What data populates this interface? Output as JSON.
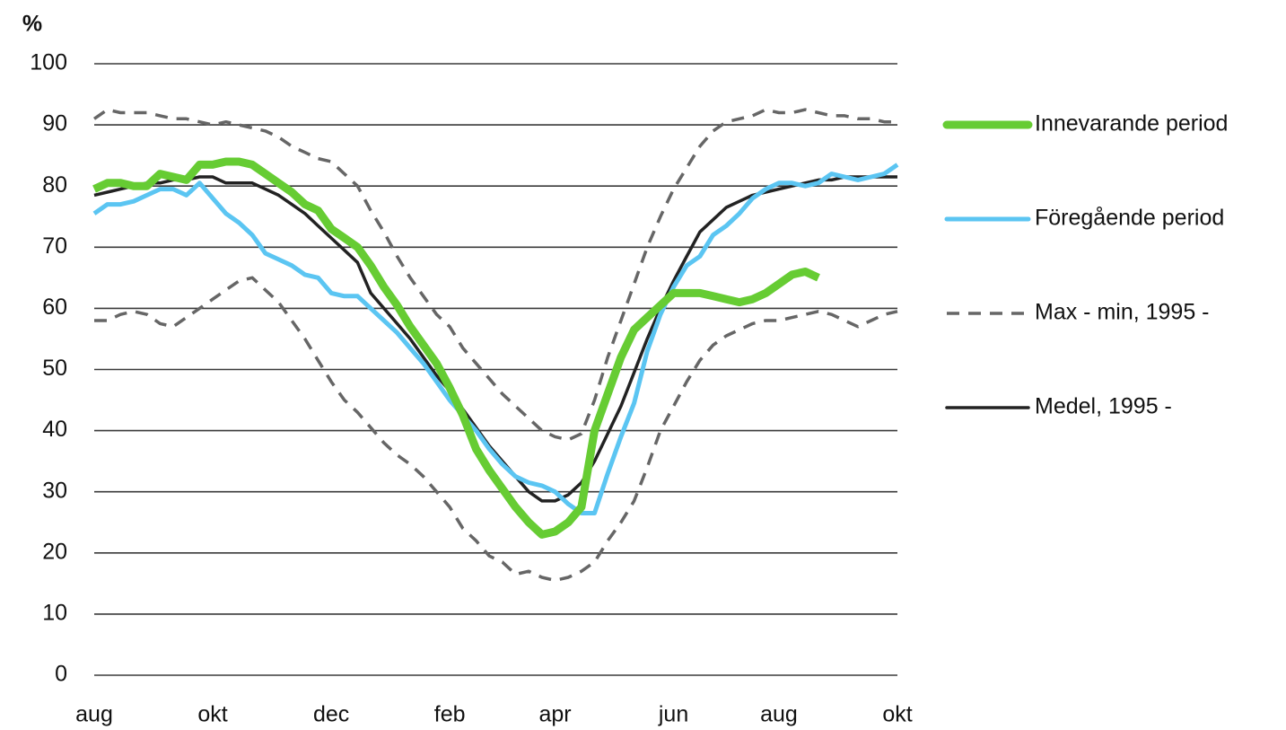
{
  "chart_data": {
    "type": "line",
    "y_label": "%",
    "categories": [
      "aug",
      null,
      null,
      null,
      null,
      null,
      null,
      null,
      null,
      "okt",
      null,
      null,
      null,
      null,
      null,
      null,
      null,
      null,
      "dec",
      null,
      null,
      null,
      null,
      null,
      null,
      null,
      null,
      "feb",
      null,
      null,
      null,
      null,
      null,
      null,
      null,
      "apr",
      null,
      null,
      null,
      null,
      null,
      null,
      null,
      null,
      "jun",
      null,
      null,
      null,
      null,
      null,
      null,
      null,
      "aug",
      null,
      null,
      null,
      null,
      null,
      null,
      null,
      null,
      "okt"
    ],
    "ylim": [
      0,
      100
    ],
    "yticks": [
      0,
      10,
      20,
      30,
      40,
      50,
      60,
      70,
      80,
      90,
      100
    ],
    "grid": true,
    "series": [
      {
        "name": "Innevarande period",
        "color": "#66cc33",
        "width": 9,
        "dashed": false,
        "values": [
          79.5,
          80.5,
          80.5,
          80,
          80,
          82,
          81.5,
          81,
          83.5,
          83.5,
          84,
          84,
          83.5,
          82,
          80.5,
          79,
          77,
          76,
          73,
          71.5,
          70,
          67,
          63.5,
          60.5,
          57,
          54,
          51,
          47,
          42.5,
          37,
          33.5,
          30.5,
          27.5,
          25,
          23,
          23.5,
          25,
          27.5,
          40,
          46,
          52,
          56.5,
          58.5,
          60.5,
          62.5,
          62.5,
          62.5,
          62,
          61.5,
          61,
          61.5,
          62.5,
          64,
          65.5,
          66,
          65,
          null,
          null,
          null,
          null,
          null,
          null
        ]
      },
      {
        "name": "Föregående period",
        "color": "#5bc5f2",
        "width": 5,
        "dashed": false,
        "values": [
          75.5,
          77,
          77,
          77.5,
          78.5,
          79.5,
          79.5,
          78.5,
          80.5,
          78,
          75.5,
          74,
          72,
          69,
          68,
          67,
          65.5,
          65,
          62.5,
          62,
          62,
          60,
          58,
          56,
          53.5,
          51,
          48,
          45,
          42.5,
          40,
          37,
          34.5,
          32.5,
          31.5,
          31,
          30,
          28,
          26.5,
          26.5,
          33,
          39,
          44.5,
          53,
          59,
          63.5,
          67,
          68.5,
          72,
          73.5,
          75.5,
          78,
          79.5,
          80.5,
          80.5,
          80,
          80.5,
          82,
          81.5,
          81,
          81.5,
          82,
          83.5
        ]
      },
      {
        "name": "Max - min, 1995 -",
        "color": "#666666",
        "width": 3.5,
        "dashed": true,
        "values": [
          91,
          92.5,
          92,
          92,
          92,
          91.5,
          91,
          91,
          90.5,
          90,
          90.5,
          90,
          89.5,
          89,
          88,
          86.5,
          85.5,
          84.5,
          84,
          82,
          80,
          76,
          72.5,
          68.5,
          65,
          62,
          59,
          57,
          53.5,
          51,
          48.5,
          46,
          44,
          42,
          40,
          39,
          38.5,
          39.5,
          45,
          52,
          58,
          64,
          70,
          75,
          79.5,
          83,
          86.5,
          89,
          90.5,
          91,
          91.5,
          92.5,
          92,
          92,
          92.5,
          92,
          91.5,
          91.5,
          91,
          91,
          90.5,
          90.5
        ]
      },
      {
        "color": "#666666",
        "width": 3.5,
        "dashed": true,
        "values": [
          58,
          58,
          59,
          59.5,
          59,
          57.5,
          57,
          58.5,
          60,
          61.5,
          63,
          64.5,
          65,
          63,
          61,
          58,
          55,
          51.5,
          48,
          45,
          43,
          40.5,
          38,
          36,
          34.5,
          32.5,
          30,
          27.5,
          24,
          22,
          19.5,
          18.5,
          16.5,
          17,
          16,
          15.5,
          16,
          17,
          18.5,
          22,
          25,
          28.5,
          34,
          40,
          44,
          48,
          51.5,
          54,
          55.5,
          56.5,
          57.5,
          58,
          58,
          58.5,
          59,
          59.5,
          59,
          58,
          57,
          58,
          59,
          59.5
        ]
      },
      {
        "name": "Medel, 1995 -",
        "color": "#222222",
        "width": 3.5,
        "dashed": false,
        "values": [
          78.5,
          79,
          79.5,
          80,
          80.5,
          80.5,
          81,
          81,
          81.5,
          81.5,
          80.5,
          80.5,
          80.5,
          79.5,
          78.5,
          77,
          75.5,
          73.5,
          71.5,
          69.5,
          67.5,
          62.5,
          60,
          57.5,
          55,
          52,
          49,
          46.5,
          43.5,
          40.5,
          37.5,
          35,
          32.5,
          30,
          28.5,
          28.5,
          29.5,
          31.5,
          35,
          39.5,
          44,
          49.5,
          55,
          60,
          64.5,
          68.5,
          72.5,
          74.5,
          76.5,
          77.5,
          78.5,
          79,
          79.5,
          80,
          80.5,
          81,
          81,
          81.5,
          81.5,
          81.5,
          81.5,
          81.5
        ]
      }
    ]
  }
}
